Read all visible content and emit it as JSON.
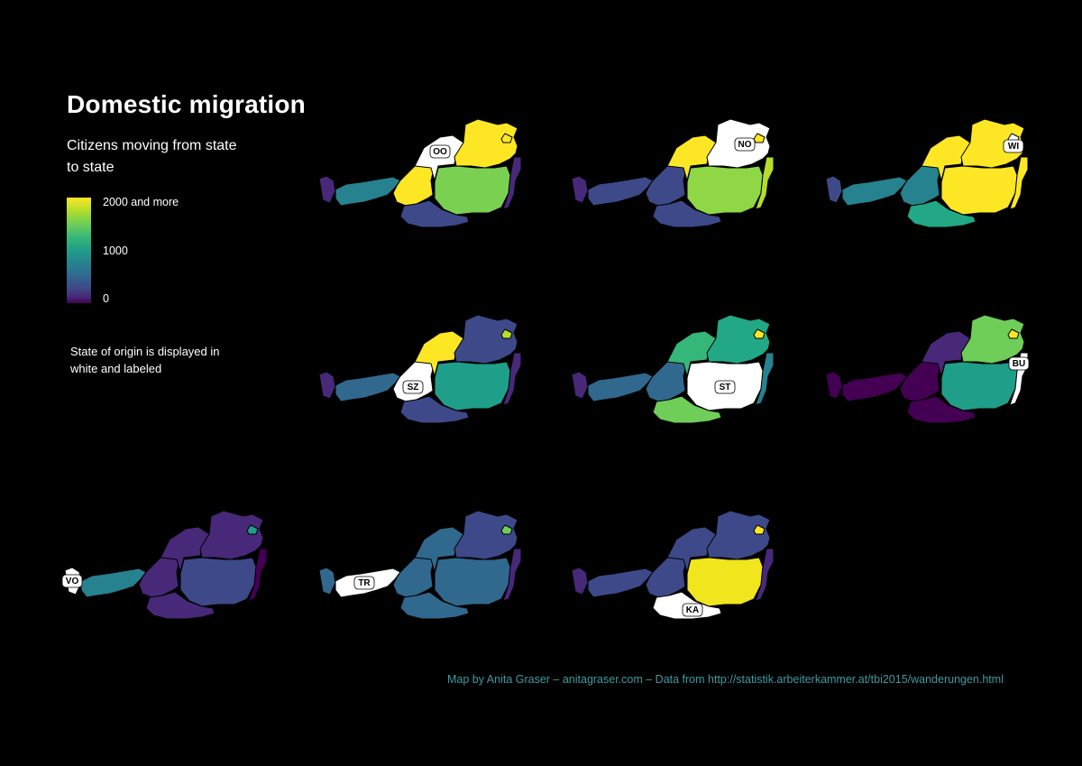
{
  "title": "Domestic migration",
  "subtitle": "Citizens moving from state to state",
  "legend": {
    "max_label": "2000 and more",
    "mid_label": "1000",
    "min_label": "0",
    "gradient": [
      "#440154",
      "#482878",
      "#3e4989",
      "#31688e",
      "#26828e",
      "#1f9e89",
      "#35b779",
      "#6ece58",
      "#b5de2b",
      "#fde725"
    ]
  },
  "note": "State of origin is displayed in white and labeled",
  "credit": "Map by Anita Graser – anitagraser.com – Data from http://statistik.arbeiterkammer.at/tbi2015/wanderungen.html",
  "origin_color": "#ffffff",
  "panels": [
    {
      "origin": "OO",
      "label": "OO",
      "fills": {
        "VO": "#482878",
        "TR": "#26828e",
        "SZ": "#fde725",
        "OO": "#ffffff",
        "NO": "#fde725",
        "WI": "#fde725",
        "ST": "#7ad151",
        "KA": "#3e4989",
        "BU": "#482878"
      }
    },
    {
      "origin": "NO",
      "label": "NO",
      "fills": {
        "VO": "#482878",
        "TR": "#3e4989",
        "SZ": "#3e4989",
        "OO": "#fde725",
        "NO": "#ffffff",
        "WI": "#fde725",
        "ST": "#8fd744",
        "KA": "#3e4989",
        "BU": "#b5de2b"
      }
    },
    {
      "origin": "WI",
      "label": "WI",
      "fills": {
        "VO": "#3e4989",
        "TR": "#26828e",
        "SZ": "#26828e",
        "OO": "#fde725",
        "NO": "#fde725",
        "WI": "#ffffff",
        "ST": "#fde725",
        "KA": "#22a884",
        "BU": "#fde725"
      }
    },
    {
      "origin": "SZ",
      "label": "SZ",
      "fills": {
        "VO": "#482878",
        "TR": "#31688e",
        "SZ": "#ffffff",
        "OO": "#fde725",
        "NO": "#3e4989",
        "WI": "#b5de2b",
        "ST": "#1f9e89",
        "KA": "#3e4989",
        "BU": "#482878"
      }
    },
    {
      "origin": "ST",
      "label": "ST",
      "fills": {
        "VO": "#482878",
        "TR": "#31688e",
        "SZ": "#31688e",
        "OO": "#35b779",
        "NO": "#22a884",
        "WI": "#fde725",
        "ST": "#ffffff",
        "KA": "#6ece58",
        "BU": "#26828e"
      }
    },
    {
      "origin": "BU",
      "label": "BU",
      "fills": {
        "VO": "#440154",
        "TR": "#440154",
        "SZ": "#440154",
        "OO": "#482878",
        "NO": "#6ece58",
        "WI": "#fde725",
        "ST": "#1f9e89",
        "KA": "#440154",
        "BU": "#ffffff"
      }
    },
    {
      "origin": "VO",
      "label": "VO",
      "fills": {
        "VO": "#ffffff",
        "TR": "#26828e",
        "SZ": "#482878",
        "OO": "#482878",
        "NO": "#482878",
        "WI": "#1f9e89",
        "ST": "#3e4989",
        "KA": "#482878",
        "BU": "#440154"
      }
    },
    {
      "origin": "TR",
      "label": "TR",
      "fills": {
        "VO": "#31688e",
        "TR": "#ffffff",
        "SZ": "#31688e",
        "OO": "#31688e",
        "NO": "#3e4989",
        "WI": "#6ece58",
        "ST": "#31688e",
        "KA": "#31688e",
        "BU": "#482878"
      }
    },
    {
      "origin": "KA",
      "label": "KA",
      "fills": {
        "VO": "#482878",
        "TR": "#3e4989",
        "SZ": "#3e4989",
        "OO": "#3e4989",
        "NO": "#3e4989",
        "WI": "#fde725",
        "ST": "#f1e51d",
        "KA": "#ffffff",
        "BU": "#482878"
      }
    }
  ]
}
